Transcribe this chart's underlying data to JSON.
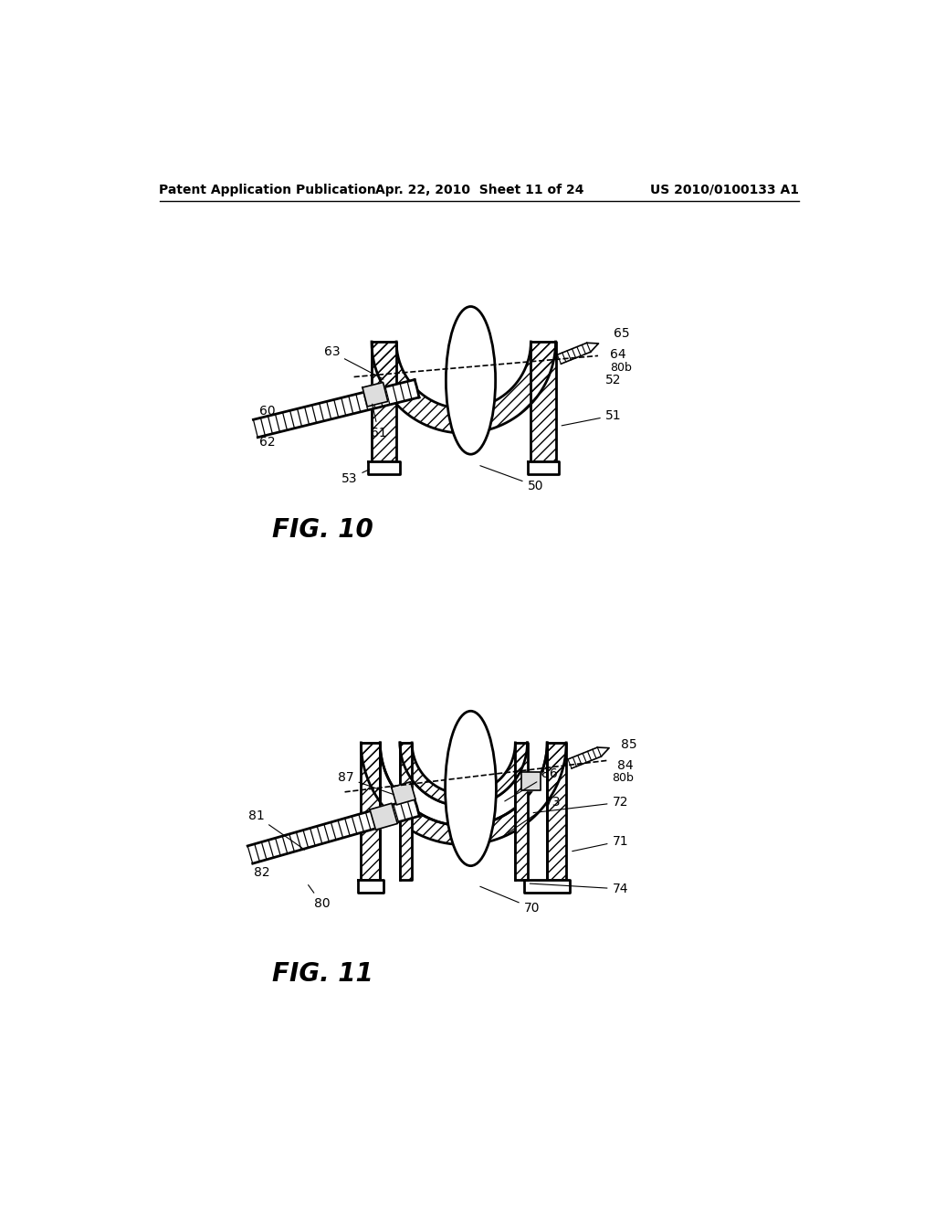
{
  "bg_color": "#ffffff",
  "header_left": "Patent Application Publication",
  "header_center": "Apr. 22, 2010  Sheet 11 of 24",
  "header_right": "US 2010/0100133 A1",
  "fig10_label": "FIG. 10",
  "fig11_label": "FIG. 11",
  "line_color": "#000000"
}
